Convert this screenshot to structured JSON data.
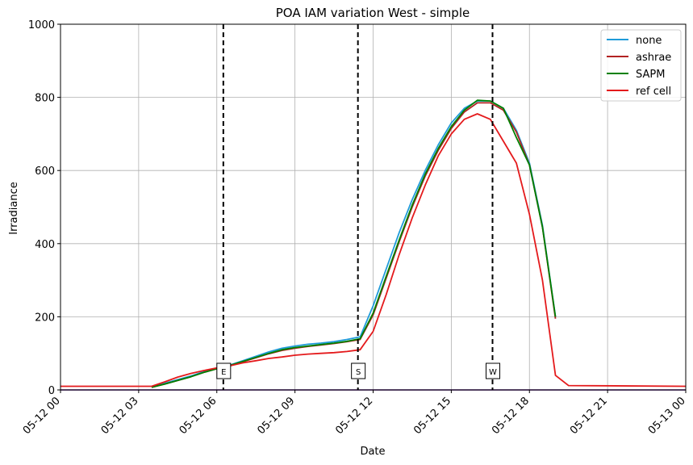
{
  "chart_data": {
    "type": "line",
    "title": "POA IAM variation West - simple",
    "xlabel": "Date",
    "ylabel": "Irradiance",
    "xlim": [
      "05-12 00:00",
      "05-13 00:00"
    ],
    "ylim": [
      0,
      1000
    ],
    "grid": true,
    "legend_position": "top-right",
    "x_ticks": [
      "05-12 00",
      "05-12 03",
      "05-12 06",
      "05-12 09",
      "05-12 12",
      "05-12 15",
      "05-12 18",
      "05-12 21",
      "05-13 00"
    ],
    "y_ticks": [
      "0",
      "200",
      "400",
      "600",
      "800",
      "1000"
    ],
    "markers": [
      {
        "label": "E",
        "time": "05-12 06:15"
      },
      {
        "label": "S",
        "time": "05-12 11:25"
      },
      {
        "label": "W",
        "time": "05-12 16:35"
      }
    ],
    "series": [
      {
        "name": "none",
        "color": "#1f9bd9",
        "points": [
          [
            "05-12 03:30",
            8
          ],
          [
            "05-12 04:00",
            18
          ],
          [
            "05-12 04:30",
            28
          ],
          [
            "05-12 05:00",
            38
          ],
          [
            "05-12 05:30",
            50
          ],
          [
            "05-12 06:00",
            60
          ],
          [
            "05-12 06:30",
            68
          ],
          [
            "05-12 07:00",
            80
          ],
          [
            "05-12 07:30",
            92
          ],
          [
            "05-12 08:00",
            104
          ],
          [
            "05-12 08:30",
            114
          ],
          [
            "05-12 09:00",
            120
          ],
          [
            "05-12 09:30",
            125
          ],
          [
            "05-12 10:00",
            128
          ],
          [
            "05-12 10:30",
            132
          ],
          [
            "05-12 11:00",
            138
          ],
          [
            "05-12 11:30",
            145
          ],
          [
            "05-12 12:00",
            230
          ],
          [
            "05-12 12:30",
            330
          ],
          [
            "05-12 13:00",
            430
          ],
          [
            "05-12 13:30",
            520
          ],
          [
            "05-12 14:00",
            600
          ],
          [
            "05-12 14:30",
            670
          ],
          [
            "05-12 15:00",
            730
          ],
          [
            "05-12 15:30",
            770
          ],
          [
            "05-12 16:00",
            790
          ],
          [
            "05-12 16:30",
            790
          ],
          [
            "05-12 17:00",
            770
          ],
          [
            "05-12 17:30",
            710
          ],
          [
            "05-12 18:00",
            620
          ],
          [
            "05-12 18:30",
            450
          ],
          [
            "05-12 19:00",
            200
          ]
        ]
      },
      {
        "name": "ashrae",
        "color": "#b22222",
        "points": [
          [
            "05-12 03:30",
            7
          ],
          [
            "05-12 04:00",
            16
          ],
          [
            "05-12 04:30",
            26
          ],
          [
            "05-12 05:00",
            36
          ],
          [
            "05-12 05:30",
            48
          ],
          [
            "05-12 06:00",
            58
          ],
          [
            "05-12 06:30",
            66
          ],
          [
            "05-12 07:00",
            77
          ],
          [
            "05-12 07:30",
            88
          ],
          [
            "05-12 08:00",
            99
          ],
          [
            "05-12 08:30",
            108
          ],
          [
            "05-12 09:00",
            114
          ],
          [
            "05-12 09:30",
            119
          ],
          [
            "05-12 10:00",
            123
          ],
          [
            "05-12 10:30",
            127
          ],
          [
            "05-12 11:00",
            132
          ],
          [
            "05-12 11:30",
            138
          ],
          [
            "05-12 12:00",
            205
          ],
          [
            "05-12 12:30",
            305
          ],
          [
            "05-12 13:00",
            405
          ],
          [
            "05-12 13:30",
            500
          ],
          [
            "05-12 14:00",
            585
          ],
          [
            "05-12 14:30",
            655
          ],
          [
            "05-12 15:00",
            715
          ],
          [
            "05-12 15:30",
            760
          ],
          [
            "05-12 16:00",
            785
          ],
          [
            "05-12 16:30",
            785
          ],
          [
            "05-12 17:00",
            765
          ],
          [
            "05-12 17:30",
            705
          ],
          [
            "05-12 18:00",
            615
          ],
          [
            "05-12 18:30",
            445
          ],
          [
            "05-12 19:00",
            195
          ]
        ]
      },
      {
        "name": "SAPM",
        "color": "#008000",
        "points": [
          [
            "05-12 03:30",
            7
          ],
          [
            "05-12 04:00",
            16
          ],
          [
            "05-12 04:30",
            26
          ],
          [
            "05-12 05:00",
            36
          ],
          [
            "05-12 05:30",
            48
          ],
          [
            "05-12 06:00",
            58
          ],
          [
            "05-12 06:30",
            67
          ],
          [
            "05-12 07:00",
            78
          ],
          [
            "05-12 07:30",
            89
          ],
          [
            "05-12 08:00",
            100
          ],
          [
            "05-12 08:30",
            110
          ],
          [
            "05-12 09:00",
            116
          ],
          [
            "05-12 09:30",
            120
          ],
          [
            "05-12 10:00",
            124
          ],
          [
            "05-12 10:30",
            128
          ],
          [
            "05-12 11:00",
            133
          ],
          [
            "05-12 11:30",
            140
          ],
          [
            "05-12 12:00",
            210
          ],
          [
            "05-12 12:30",
            310
          ],
          [
            "05-12 13:00",
            410
          ],
          [
            "05-12 13:30",
            505
          ],
          [
            "05-12 14:00",
            590
          ],
          [
            "05-12 14:30",
            660
          ],
          [
            "05-12 15:00",
            720
          ],
          [
            "05-12 15:30",
            765
          ],
          [
            "05-12 16:00",
            792
          ],
          [
            "05-12 16:30",
            790
          ],
          [
            "05-12 17:00",
            770
          ],
          [
            "05-12 17:30",
            690
          ],
          [
            "05-12 18:00",
            615
          ],
          [
            "05-12 18:30",
            445
          ],
          [
            "05-12 19:00",
            200
          ]
        ]
      },
      {
        "name": "ref cell",
        "color": "#e41a1c",
        "points": [
          [
            "05-12 00:00",
            10
          ],
          [
            "05-12 03:30",
            10
          ],
          [
            "05-12 04:00",
            22
          ],
          [
            "05-12 04:30",
            35
          ],
          [
            "05-12 05:00",
            45
          ],
          [
            "05-12 05:30",
            53
          ],
          [
            "05-12 06:00",
            60
          ],
          [
            "05-12 06:30",
            66
          ],
          [
            "05-12 07:00",
            74
          ],
          [
            "05-12 07:30",
            80
          ],
          [
            "05-12 08:00",
            86
          ],
          [
            "05-12 08:30",
            90
          ],
          [
            "05-12 09:00",
            95
          ],
          [
            "05-12 09:30",
            98
          ],
          [
            "05-12 10:00",
            100
          ],
          [
            "05-12 10:30",
            102
          ],
          [
            "05-12 11:00",
            105
          ],
          [
            "05-12 11:30",
            110
          ],
          [
            "05-12 12:00",
            160
          ],
          [
            "05-12 12:30",
            260
          ],
          [
            "05-12 13:00",
            370
          ],
          [
            "05-12 13:30",
            470
          ],
          [
            "05-12 14:00",
            560
          ],
          [
            "05-12 14:30",
            640
          ],
          [
            "05-12 15:00",
            700
          ],
          [
            "05-12 15:30",
            740
          ],
          [
            "05-12 16:00",
            755
          ],
          [
            "05-12 16:30",
            740
          ],
          [
            "05-12 17:00",
            680
          ],
          [
            "05-12 17:30",
            620
          ],
          [
            "05-12 18:00",
            480
          ],
          [
            "05-12 18:30",
            300
          ],
          [
            "05-12 19:00",
            40
          ],
          [
            "05-12 19:30",
            12
          ],
          [
            "05-13 00:00",
            10
          ]
        ]
      }
    ]
  }
}
